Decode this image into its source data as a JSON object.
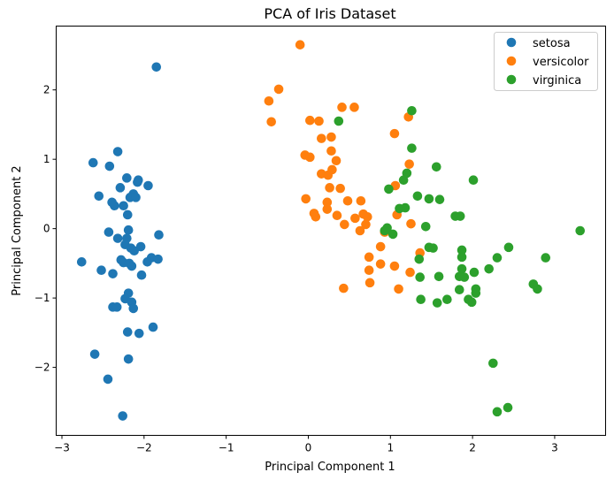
{
  "chart_data": {
    "type": "scatter",
    "title": "PCA of Iris Dataset",
    "xlabel": "Principal Component 1",
    "ylabel": "Principal Component 2",
    "xlim": [
      -3.07,
      3.62
    ],
    "ylim": [
      -2.98,
      2.92
    ],
    "xticks": [
      -3,
      -2,
      -1,
      0,
      1,
      2,
      3
    ],
    "yticks": [
      -2,
      -1,
      0,
      1,
      2
    ],
    "xtick_labels": [
      "−3",
      "−2",
      "−1",
      "0",
      "1",
      "2",
      "3"
    ],
    "ytick_labels": [
      "−2",
      "−1",
      "0",
      "1",
      "2"
    ],
    "grid": false,
    "legend_position": "top-right",
    "series": [
      {
        "name": "setosa",
        "color": "#1f77b4",
        "points": [
          [
            -1.85,
            2.33
          ],
          [
            -2.32,
            1.11
          ],
          [
            -2.62,
            0.95
          ],
          [
            -2.42,
            0.9
          ],
          [
            -2.21,
            0.73
          ],
          [
            -2.07,
            0.7
          ],
          [
            -2.08,
            0.67
          ],
          [
            -1.95,
            0.62
          ],
          [
            -2.29,
            0.59
          ],
          [
            -2.55,
            0.47
          ],
          [
            -2.13,
            0.5
          ],
          [
            -2.17,
            0.45
          ],
          [
            -2.1,
            0.45
          ],
          [
            -2.39,
            0.38
          ],
          [
            -2.36,
            0.33
          ],
          [
            -2.25,
            0.33
          ],
          [
            -2.2,
            0.2
          ],
          [
            -2.19,
            -0.02
          ],
          [
            -2.43,
            -0.05
          ],
          [
            -1.82,
            -0.09
          ],
          [
            -2.32,
            -0.14
          ],
          [
            -2.21,
            -0.14
          ],
          [
            -2.23,
            -0.23
          ],
          [
            -2.16,
            -0.28
          ],
          [
            -2.12,
            -0.32
          ],
          [
            -2.04,
            -0.26
          ],
          [
            -2.76,
            -0.48
          ],
          [
            -2.28,
            -0.45
          ],
          [
            -2.25,
            -0.49
          ],
          [
            -2.18,
            -0.5
          ],
          [
            -2.15,
            -0.54
          ],
          [
            -1.91,
            -0.42
          ],
          [
            -1.83,
            -0.44
          ],
          [
            -1.96,
            -0.48
          ],
          [
            -2.52,
            -0.6
          ],
          [
            -2.38,
            -0.65
          ],
          [
            -2.03,
            -0.67
          ],
          [
            -2.19,
            -0.93
          ],
          [
            -2.23,
            -1.01
          ],
          [
            -2.15,
            -1.06
          ],
          [
            -2.38,
            -1.13
          ],
          [
            -2.33,
            -1.13
          ],
          [
            -2.13,
            -1.15
          ],
          [
            -1.89,
            -1.42
          ],
          [
            -2.2,
            -1.49
          ],
          [
            -2.06,
            -1.51
          ],
          [
            -2.6,
            -1.81
          ],
          [
            -2.19,
            -1.88
          ],
          [
            -2.44,
            -2.17
          ],
          [
            -2.26,
            -2.7
          ]
        ]
      },
      {
        "name": "versicolor",
        "color": "#ff7f0e",
        "points": [
          [
            -0.1,
            2.65
          ],
          [
            -0.36,
            2.01
          ],
          [
            -0.48,
            1.84
          ],
          [
            0.41,
            1.75
          ],
          [
            0.56,
            1.75
          ],
          [
            -0.45,
            1.54
          ],
          [
            0.02,
            1.56
          ],
          [
            0.13,
            1.55
          ],
          [
            1.22,
            1.61
          ],
          [
            1.05,
            1.37
          ],
          [
            0.16,
            1.3
          ],
          [
            0.28,
            1.32
          ],
          [
            0.28,
            1.12
          ],
          [
            -0.04,
            1.06
          ],
          [
            0.02,
            1.03
          ],
          [
            0.34,
            0.98
          ],
          [
            1.23,
            0.93
          ],
          [
            0.16,
            0.79
          ],
          [
            0.24,
            0.77
          ],
          [
            0.29,
            0.85
          ],
          [
            1.06,
            0.62
          ],
          [
            0.26,
            0.59
          ],
          [
            0.39,
            0.58
          ],
          [
            -0.03,
            0.43
          ],
          [
            0.23,
            0.38
          ],
          [
            0.48,
            0.4
          ],
          [
            0.64,
            0.4
          ],
          [
            0.23,
            0.28
          ],
          [
            0.07,
            0.22
          ],
          [
            0.09,
            0.17
          ],
          [
            0.35,
            0.19
          ],
          [
            0.67,
            0.21
          ],
          [
            0.72,
            0.17
          ],
          [
            1.08,
            0.2
          ],
          [
            0.57,
            0.15
          ],
          [
            0.44,
            0.06
          ],
          [
            0.7,
            0.06
          ],
          [
            1.25,
            0.07
          ],
          [
            0.63,
            -0.03
          ],
          [
            0.93,
            -0.05
          ],
          [
            0.88,
            -0.26
          ],
          [
            0.74,
            -0.41
          ],
          [
            0.88,
            -0.51
          ],
          [
            1.05,
            -0.54
          ],
          [
            1.36,
            -0.35
          ],
          [
            0.74,
            -0.6
          ],
          [
            1.24,
            -0.63
          ],
          [
            0.75,
            -0.78
          ],
          [
            0.43,
            -0.86
          ],
          [
            1.1,
            -0.87
          ]
        ]
      },
      {
        "name": "virginica",
        "color": "#2ca02c",
        "points": [
          [
            1.26,
            1.7
          ],
          [
            0.37,
            1.55
          ],
          [
            1.26,
            1.16
          ],
          [
            1.56,
            0.89
          ],
          [
            2.01,
            0.7
          ],
          [
            1.2,
            0.8
          ],
          [
            1.16,
            0.7
          ],
          [
            0.98,
            0.57
          ],
          [
            1.33,
            0.47
          ],
          [
            1.47,
            0.43
          ],
          [
            1.6,
            0.42
          ],
          [
            1.11,
            0.29
          ],
          [
            1.18,
            0.3
          ],
          [
            1.79,
            0.18
          ],
          [
            1.85,
            0.18
          ],
          [
            3.31,
            -0.03
          ],
          [
            1.43,
            0.03
          ],
          [
            0.96,
            0.01
          ],
          [
            0.93,
            -0.03
          ],
          [
            1.03,
            -0.08
          ],
          [
            1.47,
            -0.27
          ],
          [
            1.52,
            -0.28
          ],
          [
            2.44,
            -0.27
          ],
          [
            1.87,
            -0.31
          ],
          [
            1.87,
            -0.41
          ],
          [
            2.3,
            -0.42
          ],
          [
            2.89,
            -0.42
          ],
          [
            1.35,
            -0.44
          ],
          [
            1.87,
            -0.58
          ],
          [
            2.2,
            -0.58
          ],
          [
            2.02,
            -0.63
          ],
          [
            1.36,
            -0.7
          ],
          [
            1.59,
            -0.69
          ],
          [
            1.84,
            -0.69
          ],
          [
            1.9,
            -0.7
          ],
          [
            2.74,
            -0.8
          ],
          [
            2.79,
            -0.87
          ],
          [
            1.84,
            -0.88
          ],
          [
            2.04,
            -0.87
          ],
          [
            2.04,
            -0.93
          ],
          [
            1.37,
            -1.02
          ],
          [
            1.57,
            -1.07
          ],
          [
            1.69,
            -1.02
          ],
          [
            1.95,
            -1.02
          ],
          [
            1.99,
            -1.06
          ],
          [
            2.25,
            -1.94
          ],
          [
            2.3,
            -2.64
          ],
          [
            2.43,
            -2.58
          ]
        ]
      }
    ]
  }
}
